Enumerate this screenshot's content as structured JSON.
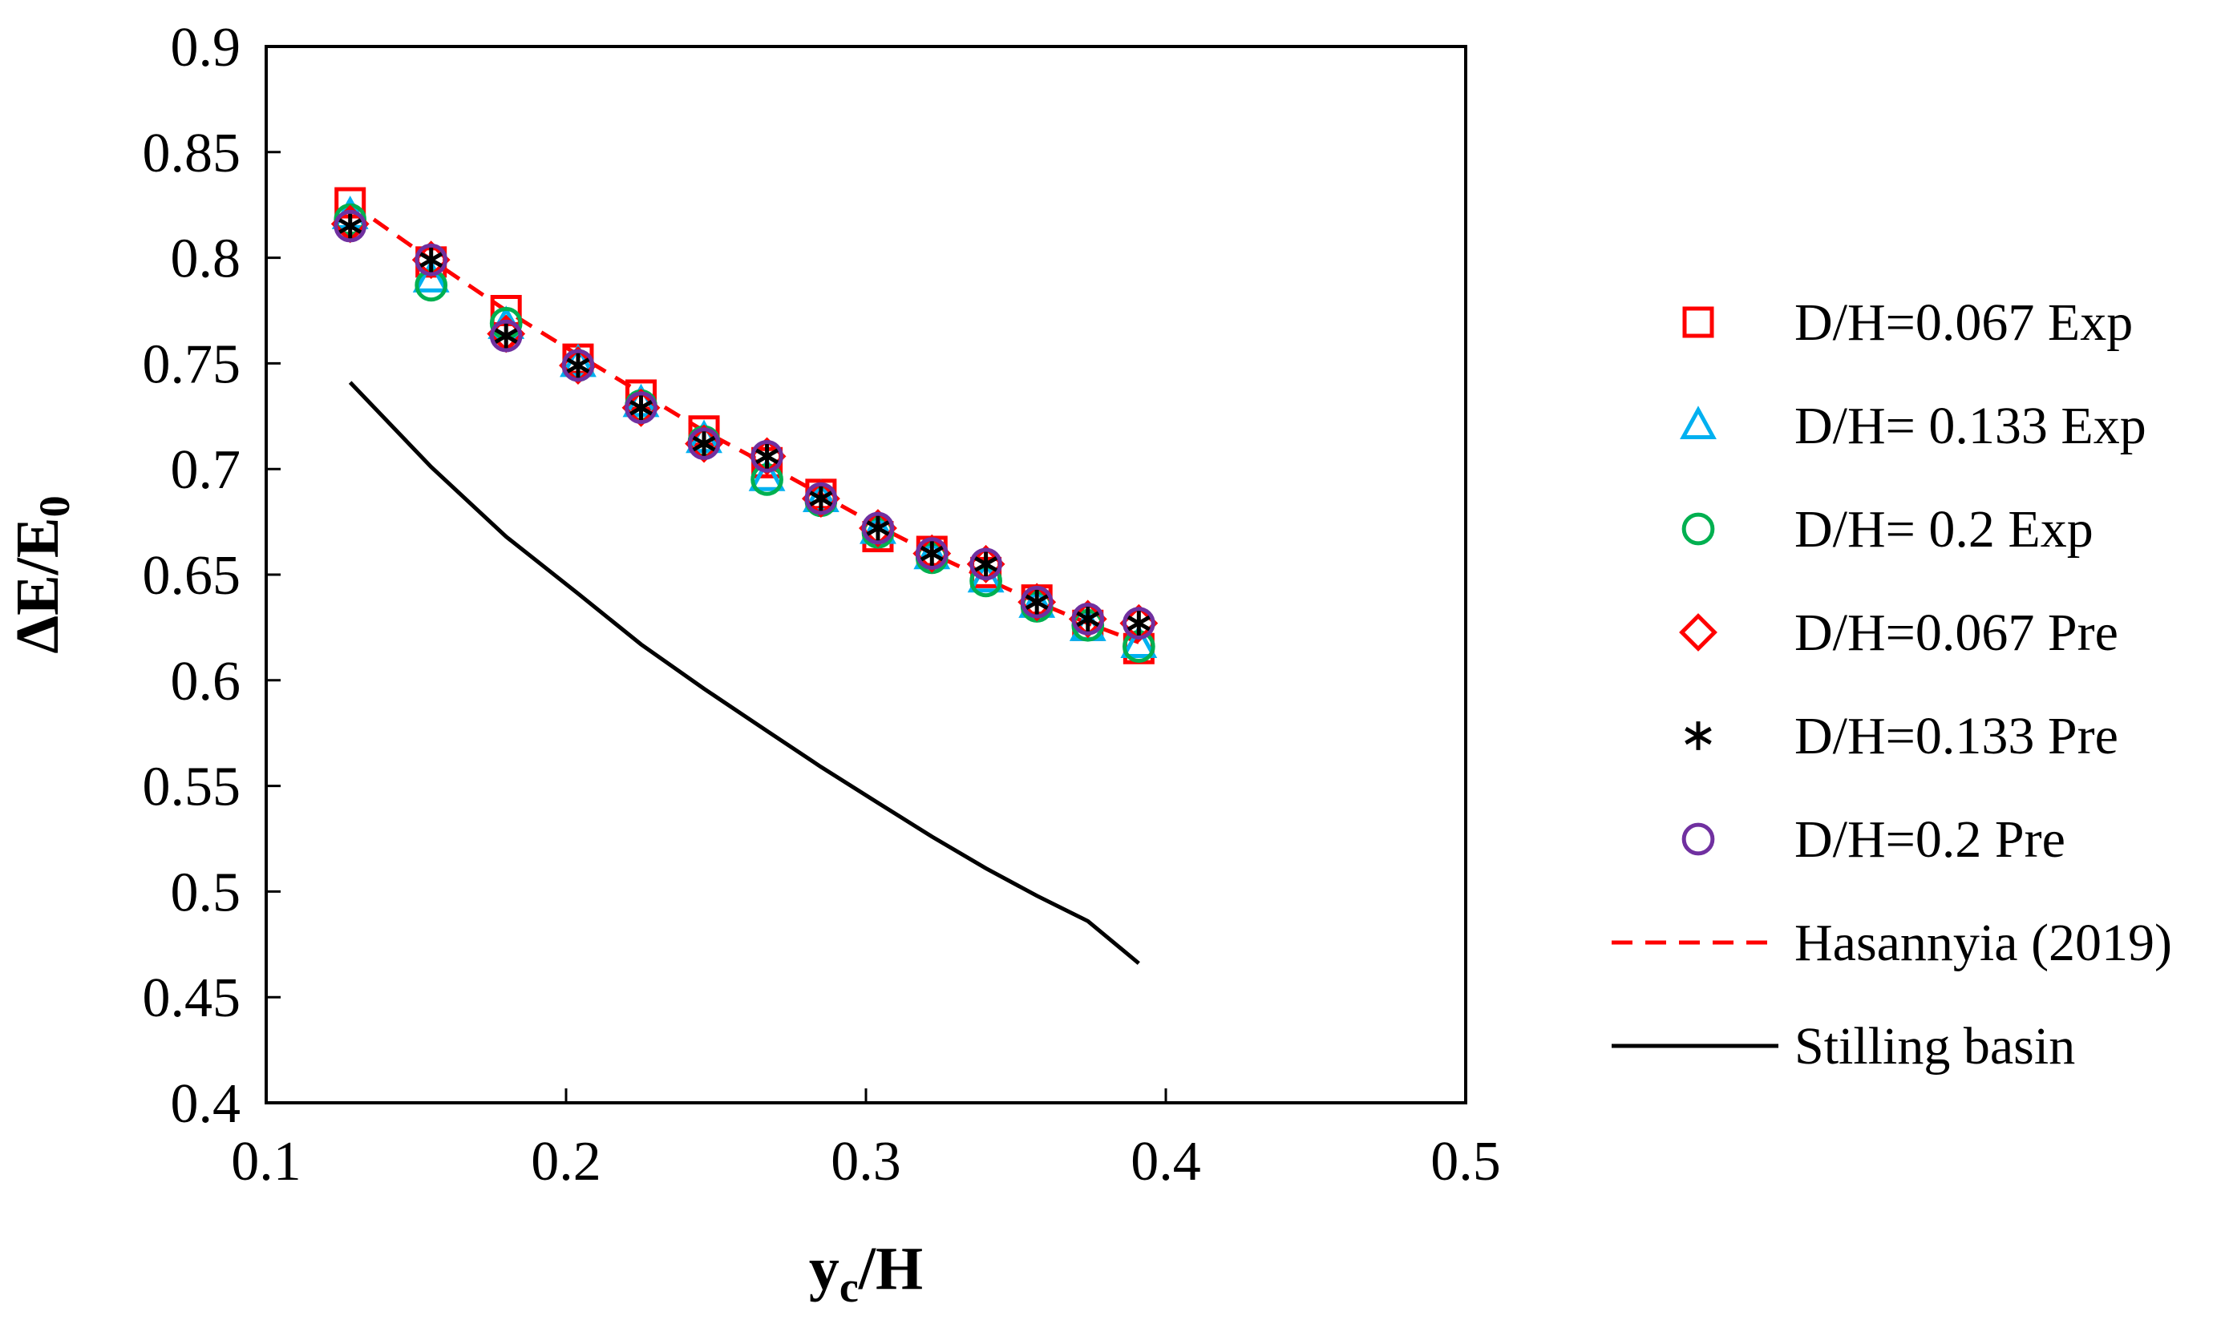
{
  "chart_data": {
    "type": "line",
    "title": "",
    "xlabel": {
      "main": "y",
      "sub": "c",
      "rest": "/H"
    },
    "ylabel": {
      "main": "ΔE/E",
      "sub": "0"
    },
    "xlim": [
      0.1,
      0.5
    ],
    "ylim": [
      0.4,
      0.9
    ],
    "xticks": [
      0.1,
      0.2,
      0.3,
      0.4,
      0.5
    ],
    "xtick_labels": [
      "0.1",
      "0.2",
      "0.3",
      "0.4",
      "0.5"
    ],
    "yticks": [
      0.4,
      0.45,
      0.5,
      0.55,
      0.6,
      0.65,
      0.7,
      0.75,
      0.8,
      0.85,
      0.9
    ],
    "ytick_labels": [
      "0.4",
      "0.45",
      "0.5",
      "0.55",
      "0.6",
      "0.65",
      "0.7",
      "0.75",
      "0.8",
      "0.85",
      "0.9"
    ],
    "grid": false,
    "legend_position": "right-outside",
    "series": [
      {
        "name": "D/H=0.067 Exp",
        "marker": "square",
        "color": "#ff0000",
        "x": [
          0.128,
          0.155,
          0.18,
          0.204,
          0.225,
          0.246,
          0.267,
          0.285,
          0.304,
          0.322,
          0.34,
          0.357,
          0.374,
          0.391
        ],
        "y": [
          0.826,
          0.798,
          0.775,
          0.752,
          0.735,
          0.718,
          0.703,
          0.688,
          0.668,
          0.661,
          0.651,
          0.638,
          0.626,
          0.615
        ]
      },
      {
        "name": "D/H= 0.133 Exp",
        "marker": "triangle",
        "color": "#00b0f0",
        "x": [
          0.128,
          0.155,
          0.18,
          0.204,
          0.225,
          0.246,
          0.267,
          0.285,
          0.304,
          0.322,
          0.34,
          0.357,
          0.374,
          0.391
        ],
        "y": [
          0.82,
          0.79,
          0.768,
          0.75,
          0.731,
          0.714,
          0.696,
          0.686,
          0.671,
          0.659,
          0.648,
          0.636,
          0.625,
          0.617
        ]
      },
      {
        "name": "D/H= 0.2 Exp",
        "marker": "circle",
        "color": "#00b050",
        "x": [
          0.128,
          0.155,
          0.18,
          0.204,
          0.225,
          0.246,
          0.267,
          0.285,
          0.304,
          0.322,
          0.34,
          0.357,
          0.374,
          0.391
        ],
        "y": [
          0.818,
          0.787,
          0.769,
          0.749,
          0.73,
          0.713,
          0.695,
          0.685,
          0.67,
          0.658,
          0.647,
          0.635,
          0.626,
          0.616
        ]
      },
      {
        "name": "D/H=0.067 Pre",
        "marker": "diamond",
        "color": "#ff0000",
        "x": [
          0.128,
          0.155,
          0.18,
          0.204,
          0.225,
          0.246,
          0.267,
          0.285,
          0.304,
          0.322,
          0.34,
          0.357,
          0.374,
          0.391
        ],
        "y": [
          0.816,
          0.799,
          0.764,
          0.749,
          0.729,
          0.712,
          0.706,
          0.686,
          0.672,
          0.66,
          0.655,
          0.637,
          0.629,
          0.627
        ]
      },
      {
        "name": "D/H=0.133 Pre",
        "marker": "star",
        "color": "#000000",
        "x": [
          0.128,
          0.155,
          0.18,
          0.204,
          0.225,
          0.246,
          0.267,
          0.285,
          0.304,
          0.322,
          0.34,
          0.357,
          0.374,
          0.391
        ],
        "y": [
          0.815,
          0.799,
          0.763,
          0.749,
          0.729,
          0.712,
          0.706,
          0.686,
          0.672,
          0.66,
          0.655,
          0.637,
          0.629,
          0.627
        ]
      },
      {
        "name": "D/H=0.2 Pre",
        "marker": "circle",
        "color": "#7030a0",
        "x": [
          0.128,
          0.155,
          0.18,
          0.204,
          0.225,
          0.246,
          0.267,
          0.285,
          0.304,
          0.322,
          0.34,
          0.357,
          0.374,
          0.391
        ],
        "y": [
          0.815,
          0.799,
          0.763,
          0.749,
          0.729,
          0.712,
          0.706,
          0.686,
          0.672,
          0.66,
          0.655,
          0.637,
          0.629,
          0.627
        ]
      },
      {
        "name": "Hasannyia (2019)",
        "line": "dashed",
        "color": "#ff0000",
        "x": [
          0.128,
          0.155,
          0.18,
          0.204,
          0.225,
          0.246,
          0.267,
          0.285,
          0.304,
          0.322,
          0.34,
          0.357,
          0.374,
          0.391
        ],
        "y": [
          0.826,
          0.799,
          0.775,
          0.754,
          0.736,
          0.718,
          0.702,
          0.688,
          0.673,
          0.66,
          0.648,
          0.637,
          0.627,
          0.618
        ]
      },
      {
        "name": "Stilling basin",
        "line": "solid",
        "color": "#000000",
        "x": [
          0.128,
          0.155,
          0.18,
          0.204,
          0.225,
          0.246,
          0.267,
          0.285,
          0.304,
          0.322,
          0.34,
          0.357,
          0.374,
          0.391
        ],
        "y": [
          0.741,
          0.701,
          0.668,
          0.641,
          0.617,
          0.596,
          0.576,
          0.559,
          0.542,
          0.526,
          0.511,
          0.498,
          0.486,
          0.466
        ]
      }
    ]
  }
}
